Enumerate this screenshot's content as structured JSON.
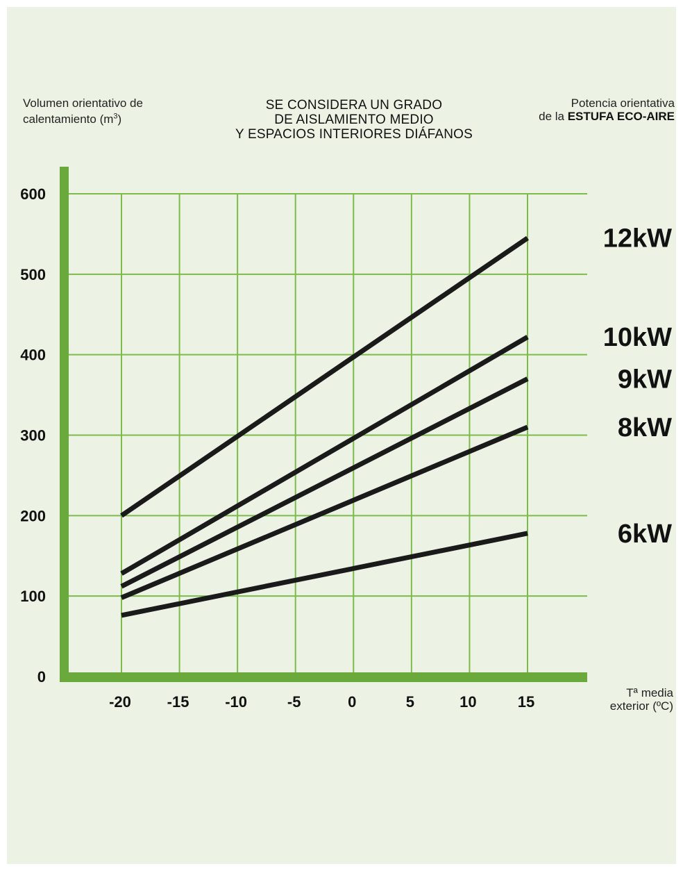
{
  "header": {
    "ylabel_line1": "Volumen orientativo de",
    "ylabel_line2_prefix": "calentamiento (m",
    "ylabel_sup": "3",
    "ylabel_line2_suffix": ")",
    "title_lines": [
      "SE CONSIDERA UN GRADO",
      "DE AISLAMIENTO MEDIO",
      "Y ESPACIOS INTERIORES DIÁFANOS"
    ],
    "right_line1": "Potencia orientativa",
    "right_line2_prefix": "de la ",
    "right_line2_bold": "ESTUFA ECO-AIRE",
    "xlabel_line1": "Tª media",
    "xlabel_line2": "exterior (ºC)"
  },
  "colors": {
    "background": "#ecf2e4",
    "axis": "#6aaa3c",
    "grid": "#7dbb4a",
    "series_line": "#1a1a1a"
  },
  "chart_data": {
    "type": "line",
    "title": "SE CONSIDERA UN GRADO DE AISLAMIENTO MEDIO Y ESPACIOS INTERIORES DIÁFANOS",
    "xlabel": "Tª media exterior (ºC)",
    "ylabel": "Volumen orientativo de calentamiento (m3)",
    "xlim": [
      -25,
      20
    ],
    "ylim": [
      0,
      600
    ],
    "x_ticks": [
      -20,
      -15,
      -10,
      -5,
      0,
      5,
      10,
      15
    ],
    "y_ticks": [
      0,
      100,
      200,
      300,
      400,
      500,
      600
    ],
    "grid": true,
    "series": [
      {
        "name": "12kW",
        "x": [
          -20,
          15
        ],
        "y": [
          200,
          545
        ]
      },
      {
        "name": "10kW",
        "x": [
          -20,
          15
        ],
        "y": [
          128,
          422
        ]
      },
      {
        "name": "9kW",
        "x": [
          -20,
          15
        ],
        "y": [
          112,
          370
        ]
      },
      {
        "name": "8kW",
        "x": [
          -20,
          15
        ],
        "y": [
          98,
          310
        ]
      },
      {
        "name": "6kW",
        "x": [
          -20,
          15
        ],
        "y": [
          76,
          178
        ]
      }
    ]
  }
}
